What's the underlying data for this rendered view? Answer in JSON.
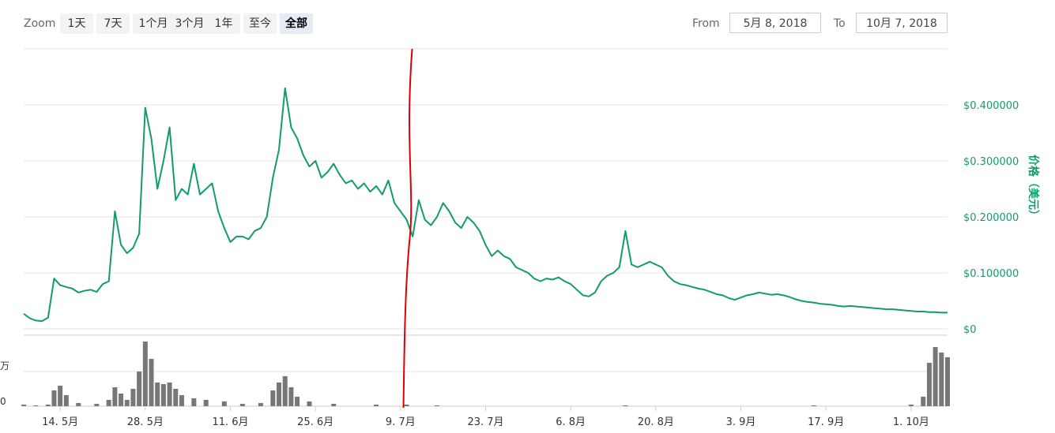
{
  "toolbar": {
    "zoom_label": "Zoom",
    "zoom_buttons": [
      "1天",
      "7天",
      "1个月",
      "3个月",
      "1年",
      "至今",
      "全部"
    ],
    "active_zoom": "全部",
    "from_label": "From",
    "from_value": "5月 8, 2018",
    "to_label": "To",
    "to_value": "10月 7, 2018"
  },
  "colors": {
    "price_line": "#119b6f",
    "volume_bar": "#777777",
    "marker": "#dd0000",
    "grid": "#e6e6e6"
  },
  "chart_data": {
    "type": "line",
    "price_series": {
      "ylim": [
        0,
        0.5
      ],
      "y_ticks": [
        0,
        0.1,
        0.2,
        0.3,
        0.4
      ],
      "y_tick_labels": [
        "$0",
        "$0.100000",
        "$0.200000",
        "$0.300000",
        "$0.400000"
      ],
      "ylabel": "价格（美元）",
      "points": [
        [
          "2018-05-08",
          0.027
        ],
        [
          "2018-05-09",
          0.019
        ],
        [
          "2018-05-10",
          0.015
        ],
        [
          "2018-05-11",
          0.014
        ],
        [
          "2018-05-12",
          0.02
        ],
        [
          "2018-05-13",
          0.09
        ],
        [
          "2018-05-14",
          0.078
        ],
        [
          "2018-05-15",
          0.075
        ],
        [
          "2018-05-16",
          0.072
        ],
        [
          "2018-05-17",
          0.065
        ],
        [
          "2018-05-18",
          0.068
        ],
        [
          "2018-05-19",
          0.07
        ],
        [
          "2018-05-20",
          0.066
        ],
        [
          "2018-05-21",
          0.08
        ],
        [
          "2018-05-22",
          0.085
        ],
        [
          "2018-05-23",
          0.21
        ],
        [
          "2018-05-24",
          0.15
        ],
        [
          "2018-05-25",
          0.135
        ],
        [
          "2018-05-26",
          0.145
        ],
        [
          "2018-05-27",
          0.17
        ],
        [
          "2018-05-28",
          0.395
        ],
        [
          "2018-05-29",
          0.34
        ],
        [
          "2018-05-30",
          0.25
        ],
        [
          "2018-05-31",
          0.3
        ],
        [
          "2018-06-01",
          0.36
        ],
        [
          "2018-06-02",
          0.23
        ],
        [
          "2018-06-03",
          0.25
        ],
        [
          "2018-06-04",
          0.24
        ],
        [
          "2018-06-05",
          0.295
        ],
        [
          "2018-06-06",
          0.24
        ],
        [
          "2018-06-07",
          0.25
        ],
        [
          "2018-06-08",
          0.26
        ],
        [
          "2018-06-09",
          0.21
        ],
        [
          "2018-06-10",
          0.18
        ],
        [
          "2018-06-11",
          0.155
        ],
        [
          "2018-06-12",
          0.165
        ],
        [
          "2018-06-13",
          0.165
        ],
        [
          "2018-06-14",
          0.16
        ],
        [
          "2018-06-15",
          0.175
        ],
        [
          "2018-06-16",
          0.18
        ],
        [
          "2018-06-17",
          0.2
        ],
        [
          "2018-06-18",
          0.27
        ],
        [
          "2018-06-19",
          0.32
        ],
        [
          "2018-06-20",
          0.43
        ],
        [
          "2018-06-21",
          0.36
        ],
        [
          "2018-06-22",
          0.34
        ],
        [
          "2018-06-23",
          0.31
        ],
        [
          "2018-06-24",
          0.29
        ],
        [
          "2018-06-25",
          0.3
        ],
        [
          "2018-06-26",
          0.27
        ],
        [
          "2018-06-27",
          0.28
        ],
        [
          "2018-06-28",
          0.295
        ],
        [
          "2018-06-29",
          0.275
        ],
        [
          "2018-06-30",
          0.26
        ],
        [
          "2018-07-01",
          0.265
        ],
        [
          "2018-07-02",
          0.25
        ],
        [
          "2018-07-03",
          0.26
        ],
        [
          "2018-07-04",
          0.245
        ],
        [
          "2018-07-05",
          0.255
        ],
        [
          "2018-07-06",
          0.24
        ],
        [
          "2018-07-07",
          0.265
        ],
        [
          "2018-07-08",
          0.225
        ],
        [
          "2018-07-09",
          0.21
        ],
        [
          "2018-07-10",
          0.195
        ],
        [
          "2018-07-11",
          0.165
        ],
        [
          "2018-07-12",
          0.23
        ],
        [
          "2018-07-13",
          0.195
        ],
        [
          "2018-07-14",
          0.185
        ],
        [
          "2018-07-15",
          0.2
        ],
        [
          "2018-07-16",
          0.225
        ],
        [
          "2018-07-17",
          0.21
        ],
        [
          "2018-07-18",
          0.19
        ],
        [
          "2018-07-19",
          0.18
        ],
        [
          "2018-07-20",
          0.2
        ],
        [
          "2018-07-21",
          0.19
        ],
        [
          "2018-07-22",
          0.175
        ],
        [
          "2018-07-23",
          0.15
        ],
        [
          "2018-07-24",
          0.13
        ],
        [
          "2018-07-25",
          0.14
        ],
        [
          "2018-07-26",
          0.13
        ],
        [
          "2018-07-27",
          0.125
        ],
        [
          "2018-07-28",
          0.11
        ],
        [
          "2018-07-29",
          0.105
        ],
        [
          "2018-07-30",
          0.1
        ],
        [
          "2018-07-31",
          0.09
        ],
        [
          "2018-08-01",
          0.085
        ],
        [
          "2018-08-02",
          0.09
        ],
        [
          "2018-08-03",
          0.088
        ],
        [
          "2018-08-04",
          0.092
        ],
        [
          "2018-08-05",
          0.085
        ],
        [
          "2018-08-06",
          0.08
        ],
        [
          "2018-08-07",
          0.07
        ],
        [
          "2018-08-08",
          0.06
        ],
        [
          "2018-08-09",
          0.058
        ],
        [
          "2018-08-10",
          0.065
        ],
        [
          "2018-08-11",
          0.085
        ],
        [
          "2018-08-12",
          0.095
        ],
        [
          "2018-08-13",
          0.1
        ],
        [
          "2018-08-14",
          0.11
        ],
        [
          "2018-08-15",
          0.175
        ],
        [
          "2018-08-16",
          0.115
        ],
        [
          "2018-08-17",
          0.11
        ],
        [
          "2018-08-18",
          0.115
        ],
        [
          "2018-08-19",
          0.12
        ],
        [
          "2018-08-20",
          0.115
        ],
        [
          "2018-08-21",
          0.11
        ],
        [
          "2018-08-22",
          0.095
        ],
        [
          "2018-08-23",
          0.085
        ],
        [
          "2018-08-24",
          0.08
        ],
        [
          "2018-08-25",
          0.078
        ],
        [
          "2018-08-26",
          0.075
        ],
        [
          "2018-08-27",
          0.072
        ],
        [
          "2018-08-28",
          0.07
        ],
        [
          "2018-08-29",
          0.066
        ],
        [
          "2018-08-30",
          0.062
        ],
        [
          "2018-08-31",
          0.06
        ],
        [
          "2018-09-01",
          0.055
        ],
        [
          "2018-09-02",
          0.052
        ],
        [
          "2018-09-03",
          0.056
        ],
        [
          "2018-09-04",
          0.06
        ],
        [
          "2018-09-05",
          0.062
        ],
        [
          "2018-09-06",
          0.065
        ],
        [
          "2018-09-07",
          0.063
        ],
        [
          "2018-09-08",
          0.061
        ],
        [
          "2018-09-09",
          0.062
        ],
        [
          "2018-09-10",
          0.06
        ],
        [
          "2018-09-11",
          0.057
        ],
        [
          "2018-09-12",
          0.053
        ],
        [
          "2018-09-13",
          0.05
        ],
        [
          "2018-09-14",
          0.048
        ],
        [
          "2018-09-15",
          0.047
        ],
        [
          "2018-09-16",
          0.045
        ],
        [
          "2018-09-17",
          0.044
        ],
        [
          "2018-09-18",
          0.043
        ],
        [
          "2018-09-19",
          0.041
        ],
        [
          "2018-09-20",
          0.04
        ],
        [
          "2018-09-21",
          0.041
        ],
        [
          "2018-09-22",
          0.04
        ],
        [
          "2018-09-23",
          0.039
        ],
        [
          "2018-09-24",
          0.038
        ],
        [
          "2018-09-25",
          0.037
        ],
        [
          "2018-09-26",
          0.036
        ],
        [
          "2018-09-27",
          0.035
        ],
        [
          "2018-09-28",
          0.035
        ],
        [
          "2018-09-29",
          0.034
        ],
        [
          "2018-09-30",
          0.033
        ],
        [
          "2018-10-01",
          0.032
        ],
        [
          "2018-10-02",
          0.031
        ],
        [
          "2018-10-03",
          0.031
        ],
        [
          "2018-10-04",
          0.03
        ],
        [
          "2018-10-05",
          0.03
        ],
        [
          "2018-10-06",
          0.029
        ],
        [
          "2018-10-07",
          0.029
        ]
      ]
    },
    "volume_series": {
      "y_tick_labels": [
        "0",
        "万"
      ],
      "points": [
        [
          "2018-05-08",
          2
        ],
        [
          "2018-05-10",
          1
        ],
        [
          "2018-05-12",
          2
        ],
        [
          "2018-05-13",
          20
        ],
        [
          "2018-05-14",
          26
        ],
        [
          "2018-05-15",
          14
        ],
        [
          "2018-05-17",
          4
        ],
        [
          "2018-05-20",
          3
        ],
        [
          "2018-05-22",
          8
        ],
        [
          "2018-05-23",
          24
        ],
        [
          "2018-05-24",
          16
        ],
        [
          "2018-05-25",
          8
        ],
        [
          "2018-05-26",
          22
        ],
        [
          "2018-05-27",
          44
        ],
        [
          "2018-05-28",
          82
        ],
        [
          "2018-05-29",
          60
        ],
        [
          "2018-05-30",
          30
        ],
        [
          "2018-05-31",
          28
        ],
        [
          "2018-06-01",
          30
        ],
        [
          "2018-06-02",
          22
        ],
        [
          "2018-06-03",
          14
        ],
        [
          "2018-06-05",
          10
        ],
        [
          "2018-06-07",
          8
        ],
        [
          "2018-06-10",
          6
        ],
        [
          "2018-06-13",
          3
        ],
        [
          "2018-06-16",
          4
        ],
        [
          "2018-06-18",
          20
        ],
        [
          "2018-06-19",
          30
        ],
        [
          "2018-06-20",
          38
        ],
        [
          "2018-06-21",
          24
        ],
        [
          "2018-06-22",
          12
        ],
        [
          "2018-06-24",
          6
        ],
        [
          "2018-06-28",
          3
        ],
        [
          "2018-07-05",
          2
        ],
        [
          "2018-07-10",
          2
        ],
        [
          "2018-07-15",
          1
        ],
        [
          "2018-08-15",
          1
        ],
        [
          "2018-09-15",
          1
        ],
        [
          "2018-10-01",
          2
        ],
        [
          "2018-10-03",
          12
        ],
        [
          "2018-10-04",
          55
        ],
        [
          "2018-10-05",
          75
        ],
        [
          "2018-10-06",
          68
        ],
        [
          "2018-10-07",
          62
        ]
      ]
    },
    "x_ticks": [
      "2018-05-14",
      "2018-05-28",
      "2018-06-11",
      "2018-06-25",
      "2018-07-09",
      "2018-07-23",
      "2018-08-06",
      "2018-08-20",
      "2018-09-03",
      "2018-09-17",
      "2018-10-01"
    ],
    "x_tick_labels": [
      "14. 5月",
      "28. 5月",
      "11. 6月",
      "25. 6月",
      "9. 7月",
      "23. 7月",
      "6. 8月",
      "20. 8月",
      "3. 9月",
      "17. 9月",
      "1. 10月"
    ],
    "grid": true,
    "marker_annotation": {
      "x": "2018-07-10"
    }
  }
}
